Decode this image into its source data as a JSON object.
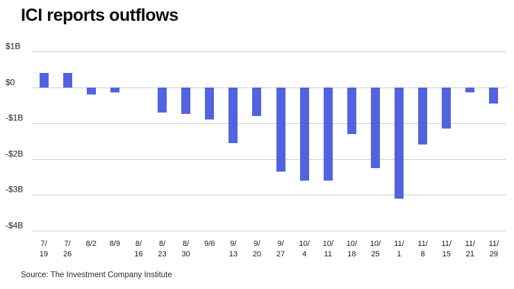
{
  "page": {
    "title": "ICI reports outflows",
    "source": "Source: The Investment Company Institute"
  },
  "chart_data": {
    "type": "bar",
    "title": "ICI reports outflows",
    "categories": [
      "7/19",
      "7/26",
      "8/2",
      "8/9",
      "8/16",
      "8/23",
      "8/30",
      "9/6",
      "9/13",
      "9/20",
      "9/27",
      "10/4",
      "10/11",
      "10/18",
      "10/25",
      "11/1",
      "11/8",
      "11/15",
      "11/21",
      "11/29"
    ],
    "values": [
      0.4,
      0.4,
      -0.2,
      -0.15,
      0,
      -0.7,
      -0.75,
      -0.9,
      -1.55,
      -0.8,
      -2.35,
      -2.6,
      -2.6,
      -1.3,
      -2.25,
      -3.1,
      -1.6,
      -1.15,
      -0.15,
      -0.45
    ],
    "xlabel": "",
    "ylabel": "",
    "ylim": [
      -4,
      1
    ],
    "y_ticks": [
      1,
      0,
      -1,
      -2,
      -3,
      -4
    ],
    "y_tick_labels": [
      "$1B",
      "$0",
      "-$1B",
      "-$2B",
      "-$3B",
      "-$4B"
    ],
    "bar_color": "#5263e0",
    "grid": true,
    "legend": "none",
    "source": "Source: The Investment Company Institute"
  }
}
